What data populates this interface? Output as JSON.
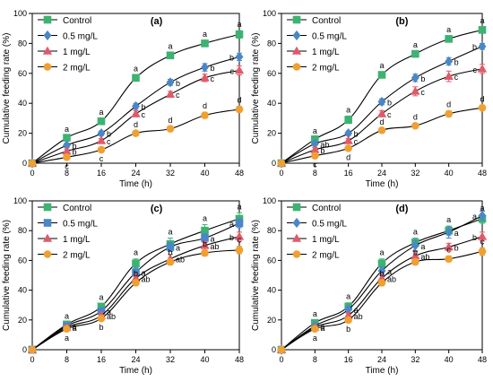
{
  "colors": {
    "Control": "#3cb371",
    "0.5 mg/L": "#4a86c8",
    "1 mg/L": "#e05a6a",
    "2 mg/L": "#f0a030",
    "axis": "#000000"
  },
  "chart_data": [
    {
      "type": "line",
      "panel_label": "(a)",
      "xlabel": "Time (h)",
      "ylabel": "Cumulative feeding rate (%)",
      "x": [
        0,
        8,
        16,
        24,
        32,
        40,
        48
      ],
      "xlim": [
        0,
        48
      ],
      "ylim": [
        0,
        100
      ],
      "xticks": [
        "0",
        "8",
        "16",
        "24",
        "32",
        "40",
        "48"
      ],
      "yticks": [
        "0",
        "20",
        "40",
        "60",
        "80",
        "100"
      ],
      "legend": "top-left",
      "series": [
        {
          "name": "Control",
          "marker": "square",
          "values": [
            0,
            17,
            28,
            57,
            72,
            80,
            86
          ],
          "errors": [
            0,
            1.5,
            2,
            2,
            2,
            2,
            2.5
          ],
          "labels": [
            "",
            "a",
            "a",
            "a",
            "a",
            "a",
            "a"
          ]
        },
        {
          "name": "0.5 mg/L",
          "marker": "diamond",
          "values": [
            0,
            12,
            20,
            38,
            54,
            64,
            71
          ],
          "errors": [
            0,
            1.5,
            1.5,
            2,
            2,
            2.5,
            2.5
          ],
          "labels": [
            "",
            "b",
            "b",
            "b",
            "b",
            "b",
            "b"
          ]
        },
        {
          "name": "1 mg/L",
          "marker": "triangle",
          "values": [
            0,
            8,
            15,
            33,
            46,
            57,
            62
          ],
          "errors": [
            0,
            1.5,
            1.5,
            2,
            2,
            2.5,
            3
          ],
          "labels": [
            "",
            "b",
            "c",
            "c",
            "c",
            "c",
            "c"
          ]
        },
        {
          "name": "2 mg/L",
          "marker": "circle",
          "values": [
            0,
            4,
            9,
            20,
            23,
            32,
            36
          ],
          "errors": [
            0,
            1,
            1.5,
            1.5,
            1.5,
            2,
            2
          ],
          "labels": [
            "",
            "c",
            "c",
            "d",
            "d",
            "d",
            "d"
          ]
        }
      ]
    },
    {
      "type": "line",
      "panel_label": "(b)",
      "xlabel": "Time (h)",
      "ylabel": "Cumulative feeding rate (%)",
      "x": [
        0,
        8,
        16,
        24,
        32,
        40,
        48
      ],
      "xlim": [
        0,
        48
      ],
      "ylim": [
        0,
        100
      ],
      "xticks": [
        "0",
        "8",
        "16",
        "24",
        "32",
        "40",
        "48"
      ],
      "yticks": [
        "0",
        "20",
        "40",
        "60",
        "80",
        "100"
      ],
      "legend": "top-left",
      "series": [
        {
          "name": "Control",
          "marker": "square",
          "values": [
            0,
            16,
            29,
            59,
            73,
            83,
            89
          ],
          "errors": [
            0,
            1.5,
            2.5,
            2,
            2,
            2,
            2
          ],
          "labels": [
            "",
            "a",
            "a",
            "a",
            "a",
            "a",
            "a"
          ]
        },
        {
          "name": "0.5 mg/L",
          "marker": "diamond",
          "values": [
            0,
            13,
            20,
            41,
            57,
            68,
            78
          ],
          "errors": [
            0,
            1.5,
            1.5,
            2,
            2.5,
            2.5,
            2
          ],
          "labels": [
            "",
            "ab",
            "b",
            "b",
            "b",
            "b",
            "b"
          ]
        },
        {
          "name": "1 mg/L",
          "marker": "triangle",
          "values": [
            0,
            9,
            15,
            33,
            48,
            58,
            63
          ],
          "errors": [
            0,
            1.5,
            1.5,
            2,
            3,
            3.5,
            3
          ],
          "labels": [
            "",
            "b",
            "c",
            "c",
            "c",
            "c",
            "c"
          ]
        },
        {
          "name": "2 mg/L",
          "marker": "circle",
          "values": [
            0,
            5,
            10,
            22,
            25,
            33,
            37
          ],
          "errors": [
            0,
            1,
            1.5,
            1.5,
            1.5,
            2,
            1.5
          ],
          "labels": [
            "",
            "c",
            "d",
            "d",
            "d",
            "d",
            "d"
          ]
        }
      ]
    },
    {
      "type": "line",
      "panel_label": "(c)",
      "xlabel": "Time (h)",
      "ylabel": "Cumulative feeding rate (%)",
      "x": [
        0,
        8,
        16,
        24,
        32,
        40,
        48
      ],
      "xlim": [
        0,
        48
      ],
      "ylim": [
        0,
        100
      ],
      "xticks": [
        "0",
        "8",
        "16",
        "24",
        "32",
        "40",
        "48"
      ],
      "yticks": [
        "0",
        "20",
        "40",
        "60",
        "80",
        "100"
      ],
      "legend": "top-left",
      "series": [
        {
          "name": "Control",
          "marker": "square",
          "values": [
            0,
            17,
            29,
            58,
            71,
            80,
            88
          ],
          "errors": [
            0,
            1.5,
            2,
            3,
            4,
            4,
            4
          ],
          "labels": [
            "",
            "a",
            "a",
            "a",
            "a",
            "a",
            "a"
          ]
        },
        {
          "name": "0.5 mg/L",
          "marker": "square",
          "values": [
            0,
            16,
            26,
            52,
            69,
            75,
            85
          ],
          "errors": [
            0,
            1.5,
            2,
            3,
            3,
            3,
            3
          ],
          "labels": [
            "",
            "a",
            "a",
            "a",
            "a",
            "a",
            "a"
          ]
        },
        {
          "name": "1 mg/L",
          "marker": "triangle",
          "values": [
            0,
            15,
            23,
            48,
            61,
            70,
            76
          ],
          "errors": [
            0,
            1.5,
            2,
            3,
            3,
            3,
            3
          ],
          "labels": [
            "",
            "a",
            "ab",
            "ab",
            "ab",
            "ab",
            "b"
          ]
        },
        {
          "name": "2 mg/L",
          "marker": "circle",
          "values": [
            0,
            14,
            21,
            45,
            59,
            65,
            67
          ],
          "errors": [
            0,
            1.5,
            1.5,
            2,
            2,
            2,
            2.5
          ],
          "labels": [
            "",
            "a",
            "b",
            "b",
            "b",
            "b",
            "c"
          ]
        }
      ]
    },
    {
      "type": "line",
      "panel_label": "(d)",
      "xlabel": "Time (h)",
      "ylabel": "Cumulative feeding rate (%)",
      "x": [
        0,
        8,
        16,
        24,
        32,
        40,
        48
      ],
      "xlim": [
        0,
        48
      ],
      "ylim": [
        0,
        100
      ],
      "xticks": [
        "0",
        "8",
        "16",
        "24",
        "32",
        "40",
        "48"
      ],
      "yticks": [
        "0",
        "20",
        "40",
        "60",
        "80",
        "100"
      ],
      "legend": "top-left",
      "series": [
        {
          "name": "Control",
          "marker": "square",
          "values": [
            0,
            18,
            29,
            58,
            72,
            80,
            88
          ],
          "errors": [
            0,
            2,
            2.5,
            3,
            3,
            3,
            3
          ],
          "labels": [
            "",
            "a",
            "a",
            "a",
            "a",
            "a",
            "a"
          ]
        },
        {
          "name": "0.5 mg/L",
          "marker": "diamond",
          "values": [
            0,
            16,
            27,
            53,
            70,
            79,
            90
          ],
          "errors": [
            0,
            2,
            2.5,
            3,
            3.5,
            4,
            3
          ],
          "labels": [
            "",
            "a",
            "a",
            "a",
            "a",
            "a",
            "a"
          ]
        },
        {
          "name": "1 mg/L",
          "marker": "triangle",
          "values": [
            0,
            15,
            23,
            48,
            63,
            69,
            76
          ],
          "errors": [
            0,
            1.5,
            2,
            3,
            3,
            2.5,
            3
          ],
          "labels": [
            "",
            "a",
            "ab",
            "ab",
            "ab",
            "b",
            "b"
          ]
        },
        {
          "name": "2 mg/L",
          "marker": "circle",
          "values": [
            0,
            14,
            20,
            45,
            59,
            61,
            66
          ],
          "errors": [
            0,
            1.5,
            1.5,
            2,
            2,
            2,
            2.5
          ],
          "labels": [
            "",
            "a",
            "b",
            "b",
            "b",
            "c",
            "c"
          ]
        }
      ]
    }
  ]
}
